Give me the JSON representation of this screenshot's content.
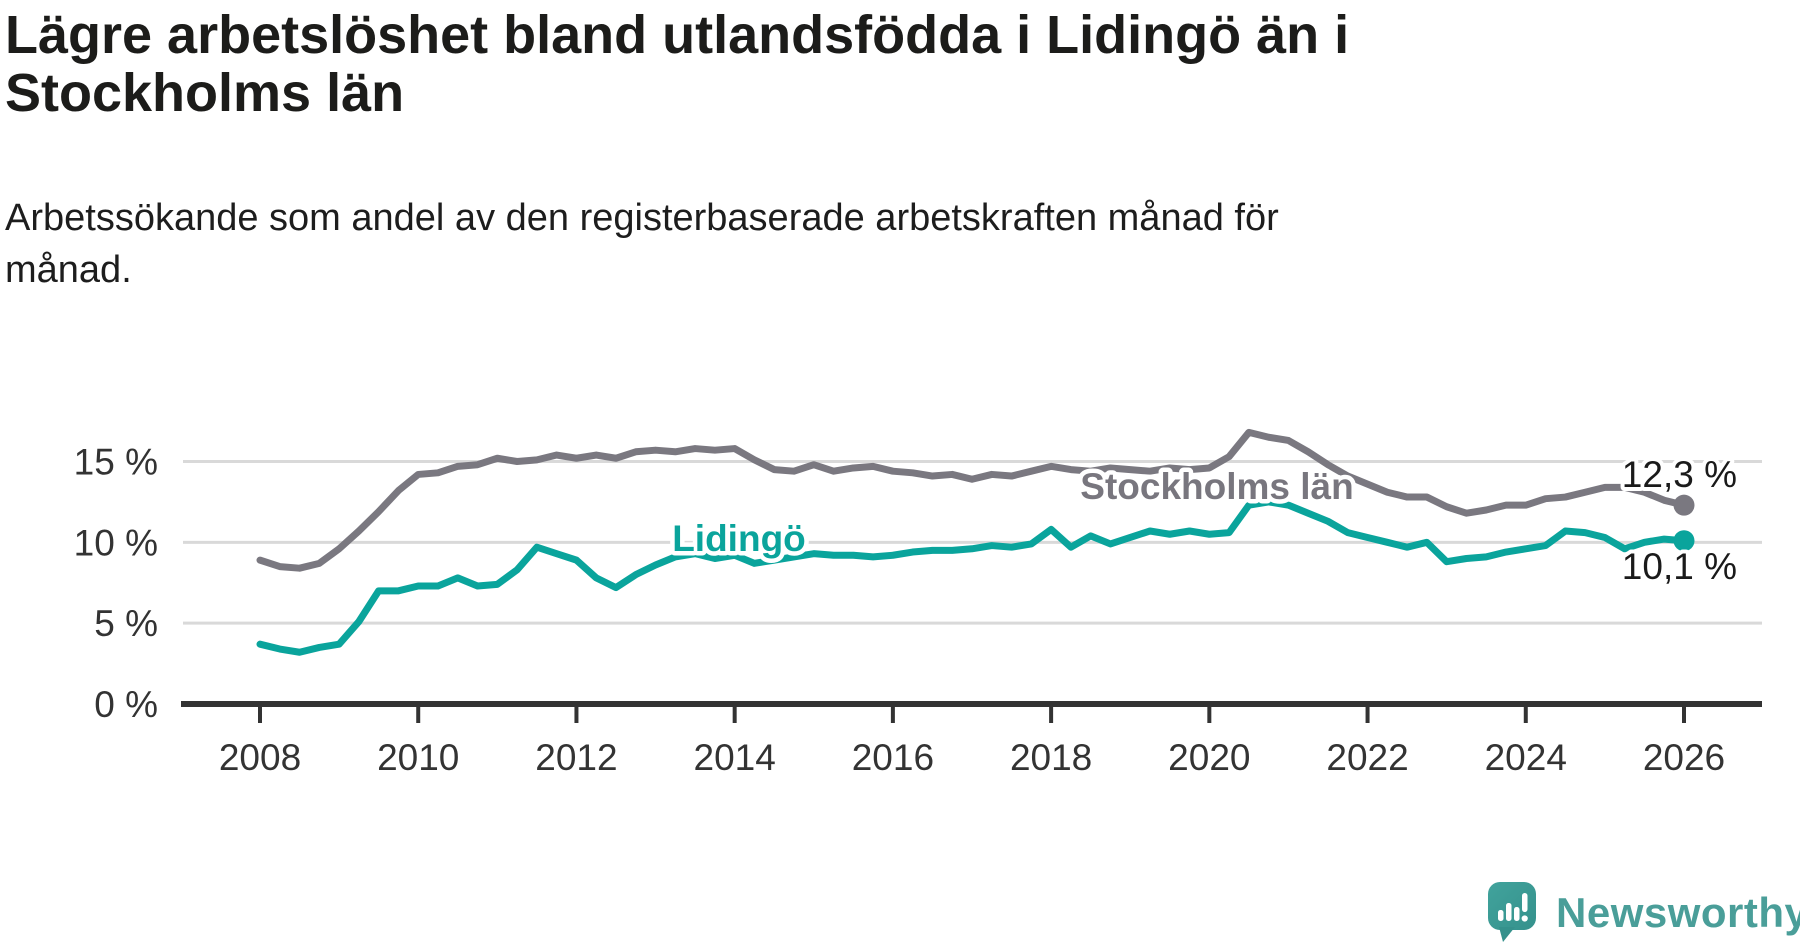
{
  "header": {
    "title_lines": [
      "Lägre arbetslöshet bland utlandsfödda i Lidingö än i",
      "Stockholms län"
    ],
    "title_full": "Lägre arbetslöshet bland utlandsfödda i Lidingö än i Stockholms län",
    "subtitle_lines": [
      "Arbetssökande som andel av den registerbaserade arbetskraften månad för",
      "månad."
    ],
    "subtitle_full": "Arbetssökande som andel av den registerbaserade arbetskraften månad för månad."
  },
  "colors": {
    "stockholm_line": "#7a7880",
    "stockholm_label": "#78767e",
    "lidingo_line": "#0aa49c",
    "gridline": "#d9d9d9",
    "axis": "#333333",
    "value_label": "#1a1a1a",
    "tick_label": "#333333",
    "background": "#ffffff",
    "logo_teal": "#3da09a",
    "brand_text": "#4a9e99"
  },
  "chart_data": {
    "type": "line",
    "title": "Lägre arbetslöshet bland utlandsfödda i Lidingö än i Stockholms län",
    "subtitle": "Arbetssökande som andel av den registerbaserade arbetskraften månad för månad.",
    "xlabel": "",
    "ylabel": "",
    "grid": "horizontal",
    "legend_position": "inline-labels",
    "x_axis": {
      "ticks": [
        2008,
        2010,
        2012,
        2014,
        2016,
        2018,
        2020,
        2022,
        2024,
        2026
      ],
      "range": [
        2008,
        2026.1
      ]
    },
    "y_axis": {
      "ticks": [
        0,
        5,
        10,
        15
      ],
      "tick_labels": [
        "0 %",
        "5 %",
        "10 %",
        "15 %"
      ],
      "unit": "%",
      "range": [
        0,
        17.5
      ]
    },
    "x_start": 2008,
    "x_step": 0.25,
    "x": [
      2008,
      2008.25,
      2008.5,
      2008.75,
      2009,
      2009.25,
      2009.5,
      2009.75,
      2010,
      2010.25,
      2010.5,
      2010.75,
      2011,
      2011.25,
      2011.5,
      2011.75,
      2012,
      2012.25,
      2012.5,
      2012.75,
      2013,
      2013.25,
      2013.5,
      2013.75,
      2014,
      2014.25,
      2014.5,
      2014.75,
      2015,
      2015.25,
      2015.5,
      2015.75,
      2016,
      2016.25,
      2016.5,
      2016.75,
      2017,
      2017.25,
      2017.5,
      2017.75,
      2018,
      2018.25,
      2018.5,
      2018.75,
      2019,
      2019.25,
      2019.5,
      2019.75,
      2020,
      2020.25,
      2020.5,
      2020.75,
      2021,
      2021.25,
      2021.5,
      2021.75,
      2022,
      2022.25,
      2022.5,
      2022.75,
      2023,
      2023.25,
      2023.5,
      2023.75,
      2024,
      2024.25,
      2024.5,
      2024.75,
      2025,
      2025.25,
      2025.5,
      2025.75,
      2026
    ],
    "series": [
      {
        "name": "Stockholms län",
        "end_label": "12,3 %",
        "end_value": 12.3,
        "color": "#7a7880",
        "values": [
          8.9,
          8.5,
          8.4,
          8.7,
          9.6,
          10.7,
          11.9,
          13.2,
          14.2,
          14.3,
          14.7,
          14.8,
          15.2,
          15.0,
          15.1,
          15.4,
          15.2,
          15.4,
          15.2,
          15.6,
          15.7,
          15.6,
          15.8,
          15.7,
          15.8,
          15.1,
          14.5,
          14.4,
          14.8,
          14.4,
          14.6,
          14.7,
          14.4,
          14.3,
          14.1,
          14.2,
          13.9,
          14.2,
          14.1,
          14.4,
          14.7,
          14.5,
          14.4,
          14.6,
          14.5,
          14.4,
          14.6,
          14.5,
          14.6,
          15.3,
          16.8,
          16.5,
          16.3,
          15.6,
          14.8,
          14.1,
          13.6,
          13.1,
          12.8,
          12.8,
          12.2,
          11.8,
          12.0,
          12.3,
          12.3,
          12.7,
          12.8,
          13.1,
          13.4,
          13.4,
          13.1,
          12.6,
          12.3
        ]
      },
      {
        "name": "Lidingö",
        "end_label": "10,1 %",
        "end_value": 10.1,
        "color": "#0aa49c",
        "values": [
          3.7,
          3.4,
          3.2,
          3.5,
          3.7,
          5.1,
          7.0,
          7.0,
          7.3,
          7.3,
          7.8,
          7.3,
          7.4,
          8.3,
          9.7,
          9.3,
          8.9,
          7.8,
          7.2,
          8.0,
          8.6,
          9.1,
          9.3,
          9.0,
          9.2,
          8.7,
          8.9,
          9.1,
          9.3,
          9.2,
          9.2,
          9.1,
          9.2,
          9.4,
          9.5,
          9.5,
          9.6,
          9.8,
          9.7,
          9.9,
          10.8,
          9.7,
          10.4,
          9.9,
          10.3,
          10.7,
          10.5,
          10.7,
          10.5,
          10.6,
          12.3,
          12.5,
          12.3,
          11.8,
          11.3,
          10.6,
          10.3,
          10.0,
          9.7,
          10.0,
          8.8,
          9.0,
          9.1,
          9.4,
          9.6,
          9.8,
          10.7,
          10.6,
          10.3,
          9.6,
          10.0,
          10.2,
          10.1
        ]
      }
    ]
  },
  "footer": {
    "brand": "Newsworthy"
  }
}
